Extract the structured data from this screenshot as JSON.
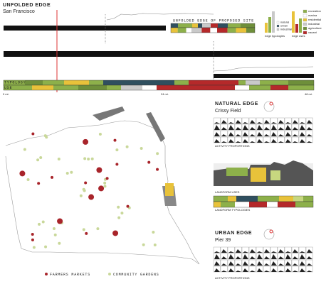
{
  "header": {
    "title": "UNFOLDED EDGE",
    "subtitle": "San Francisco"
  },
  "site": {
    "title": "UNFOLDED EDGE OF PROPOSED SITE"
  },
  "legend_typologies": {
    "items": [
      "natural",
      "urban",
      "industrial"
    ],
    "caption": "edge typologies"
  },
  "legend_uses": {
    "items": [
      "recreation",
      "marina",
      "residential",
      "industrial",
      "agriculture",
      "vacant"
    ],
    "caption": "edge uses"
  },
  "strip": {
    "typology_label": "TYPOLOGY",
    "use_label": "USE"
  },
  "scale": [
    "0 mi.",
    "24 mi.",
    "48 mi."
  ],
  "map_legend": [
    "FARMERS MARKETS",
    "COMMUNITY GARDENS"
  ],
  "natural": {
    "title": "NATURAL EDGE",
    "place": "Crissy Field",
    "caption": "ACTIVITY PROPORTIONS",
    "landform_uses": "LANDFORM USES",
    "landform_typologies": "LANDFORM TYPOLOGIES"
  },
  "urban": {
    "title": "URBAN EDGE",
    "place": "Pier 39",
    "caption": "ACTIVITY PROPORTIONS"
  }
}
